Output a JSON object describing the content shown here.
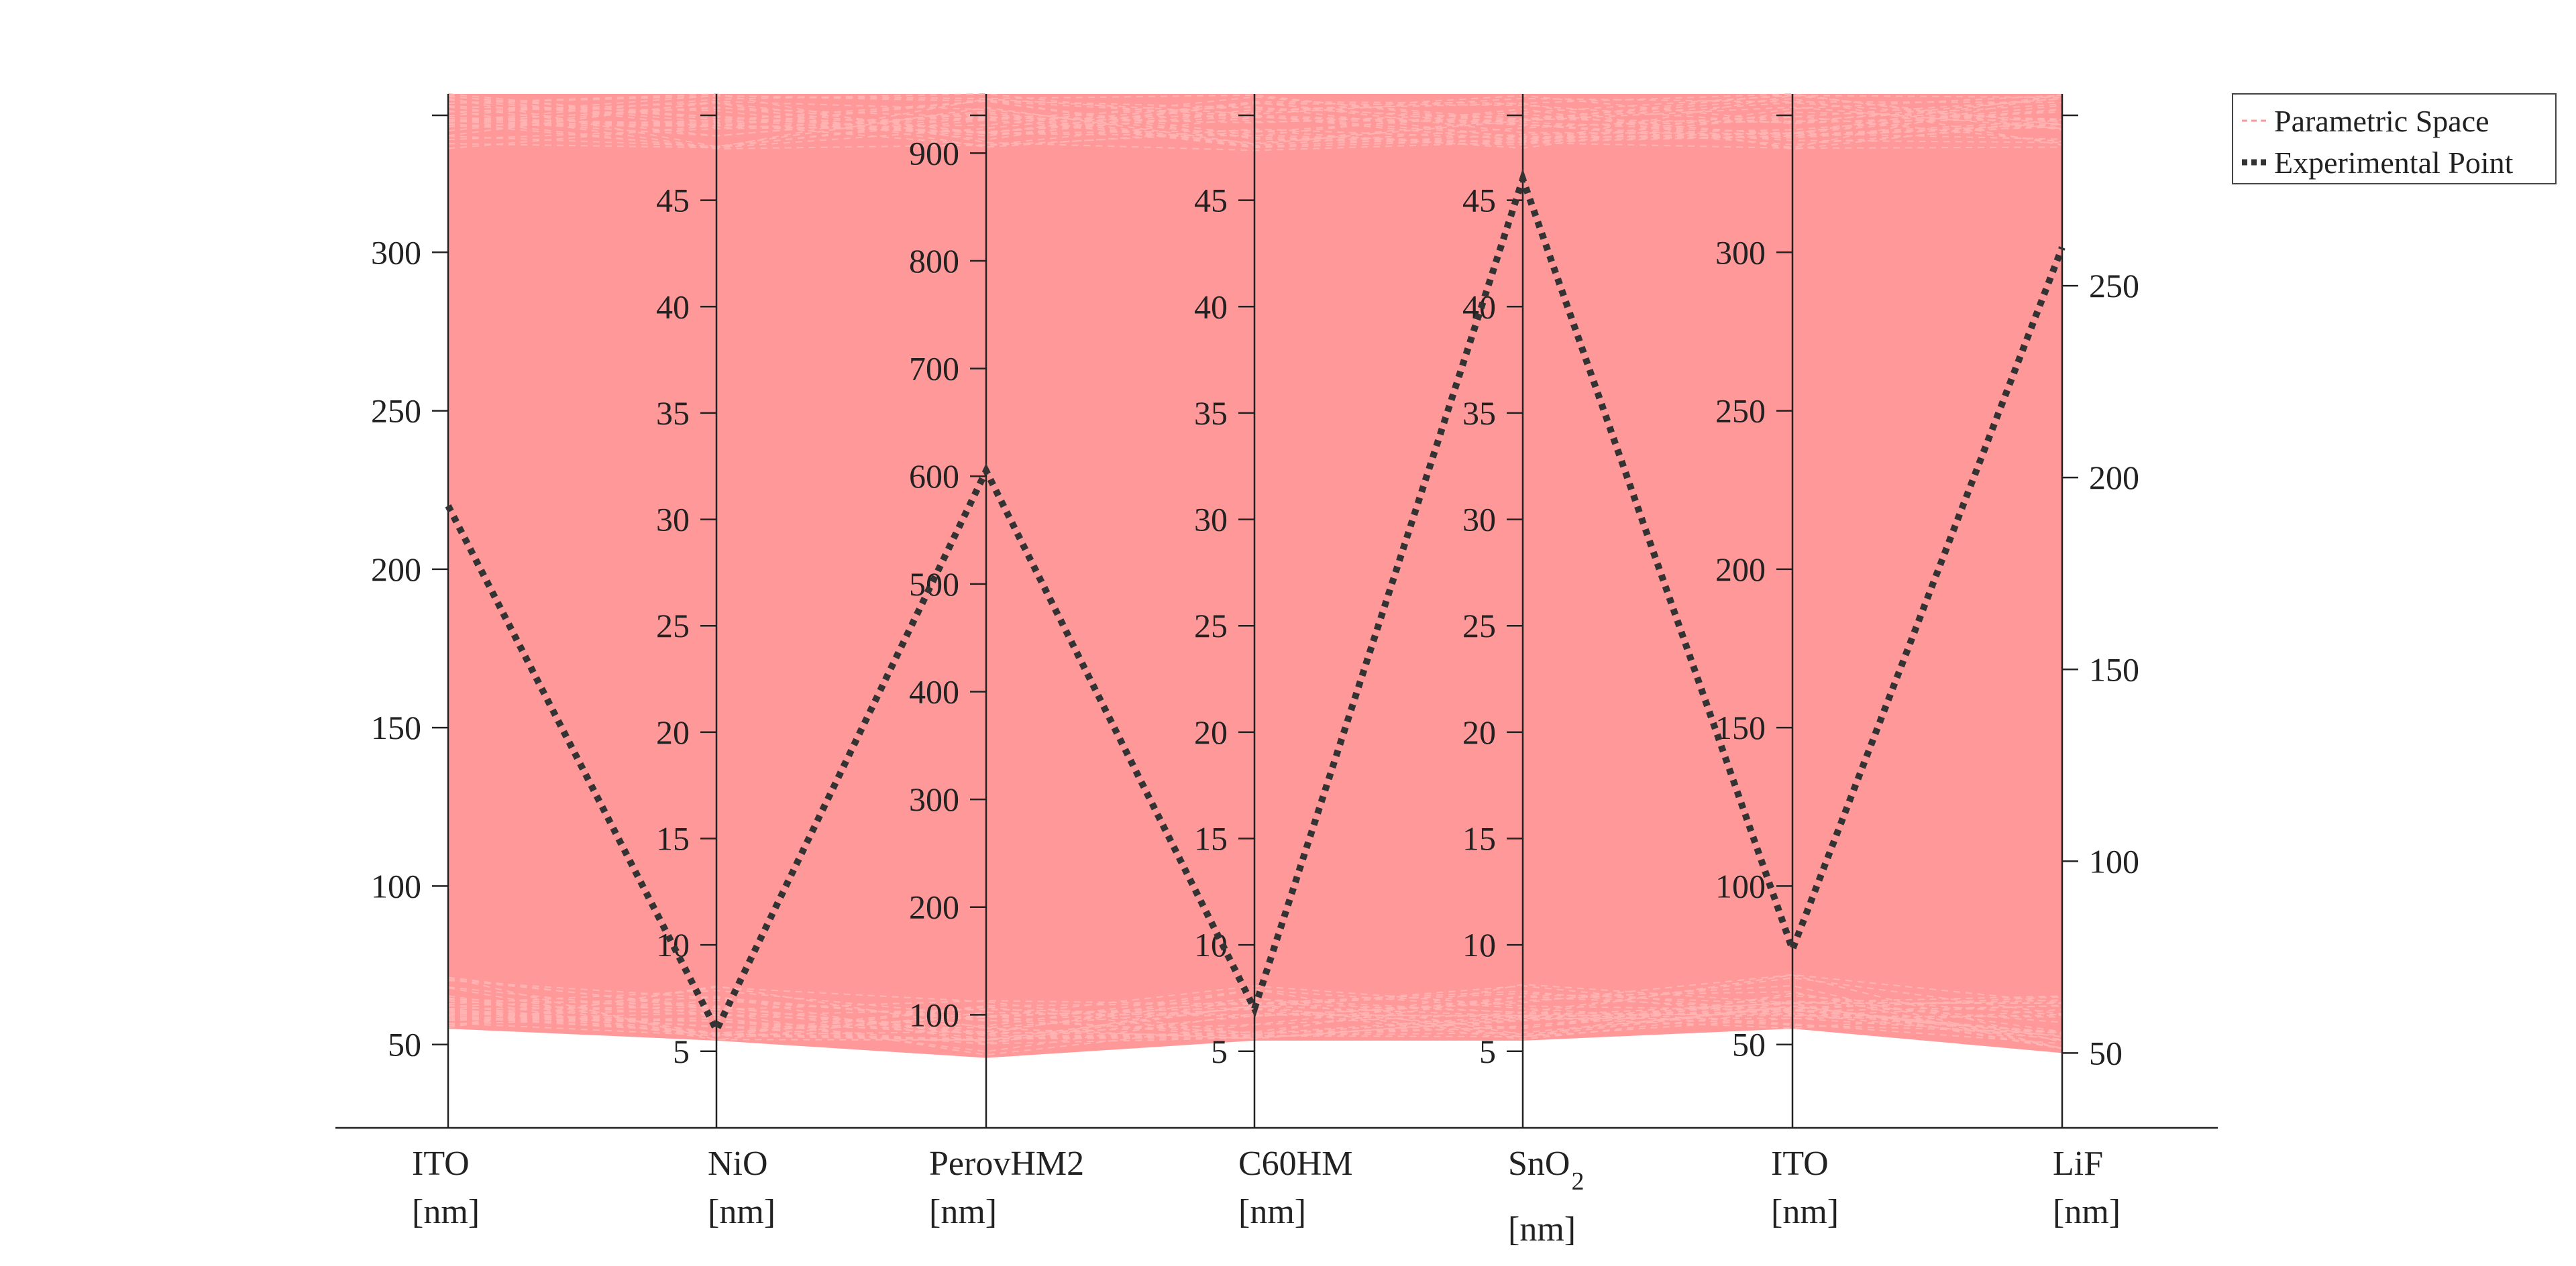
{
  "chart_data": {
    "type": "parallel-coordinates",
    "title": "",
    "axes": [
      {
        "id": "ito1",
        "label_line1": "ITO",
        "label_line2": "[nm]",
        "range": [
          23.7,
          350
        ],
        "ticks": [
          "50",
          "100",
          "150",
          "200",
          "250",
          "300"
        ],
        "tick_values": [
          50,
          100,
          150,
          200,
          250,
          "300"
        ],
        "band": [
          55,
          350
        ]
      },
      {
        "id": "nio",
        "label_line1": "NiO",
        "label_line2": "[nm]",
        "range": [
          1.4,
          50
        ],
        "ticks": [
          "5",
          "10",
          "15",
          "20",
          "25",
          "30",
          "35",
          "40",
          "45"
        ],
        "tick_values": [
          5,
          10,
          15,
          20,
          25,
          30,
          35,
          40,
          45
        ],
        "band": [
          5.5,
          50
        ]
      },
      {
        "id": "perovhm2",
        "label_line1": "PerovHM2",
        "label_line2": "[nm]",
        "range": [
          -5,
          955
        ],
        "ticks": [
          "100",
          "200",
          "300",
          "400",
          "500",
          "600",
          "700",
          "800",
          "900"
        ],
        "tick_values": [
          100,
          200,
          300,
          400,
          500,
          600,
          700,
          800,
          900
        ],
        "band": [
          60,
          955
        ]
      },
      {
        "id": "c60hm",
        "label_line1": "C60HM",
        "label_line2": "[nm]",
        "range": [
          1.4,
          50
        ],
        "ticks": [
          "5",
          "10",
          "15",
          "20",
          "25",
          "30",
          "35",
          "40",
          "45"
        ],
        "tick_values": [
          5,
          10,
          15,
          20,
          25,
          30,
          35,
          40,
          45
        ],
        "band": [
          5.5,
          50
        ]
      },
      {
        "id": "sno2",
        "label_line1": "SnO",
        "label_sub": "2",
        "label_line2": "[nm]",
        "range": [
          1.4,
          50
        ],
        "ticks": [
          "5",
          "10",
          "15",
          "20",
          "25",
          "30",
          "35",
          "40",
          "45"
        ],
        "tick_values": [
          5,
          10,
          15,
          20,
          25,
          30,
          35,
          40,
          45
        ],
        "band": [
          5.5,
          50
        ]
      },
      {
        "id": "ito2",
        "label_line1": "ITO",
        "label_line2": "[nm]",
        "range": [
          23.7,
          350
        ],
        "ticks": [
          "50",
          "100",
          "150",
          "200",
          "250",
          "300"
        ],
        "tick_values": [
          50,
          100,
          150,
          200,
          250,
          300
        ],
        "band": [
          55,
          350
        ]
      },
      {
        "id": "lif",
        "label_line1": "LiF",
        "label_line2": "[nm]",
        "range": [
          30.5,
          300
        ],
        "ticks": [
          "50",
          "100",
          "150",
          "200",
          "250"
        ],
        "tick_values": [
          50,
          100,
          150,
          200,
          250
        ],
        "band": [
          50,
          300
        ]
      }
    ],
    "series": [
      {
        "name": "Parametric Space",
        "style": "dashed",
        "color": "#ff9999",
        "count": 600
      },
      {
        "name": "Experimental Point",
        "style": "dotted",
        "color": "#333333",
        "values": [
          220,
          6,
          605,
          7,
          46,
          80,
          260
        ]
      }
    ],
    "legend": {
      "position": "top-right",
      "entries": [
        "Parametric Space",
        "Experimental Point"
      ]
    },
    "grid": false,
    "colors": {
      "band": "#ff9999",
      "band_line": "#ffb3b3",
      "experimental": "#333333",
      "axis": "#222222"
    }
  }
}
